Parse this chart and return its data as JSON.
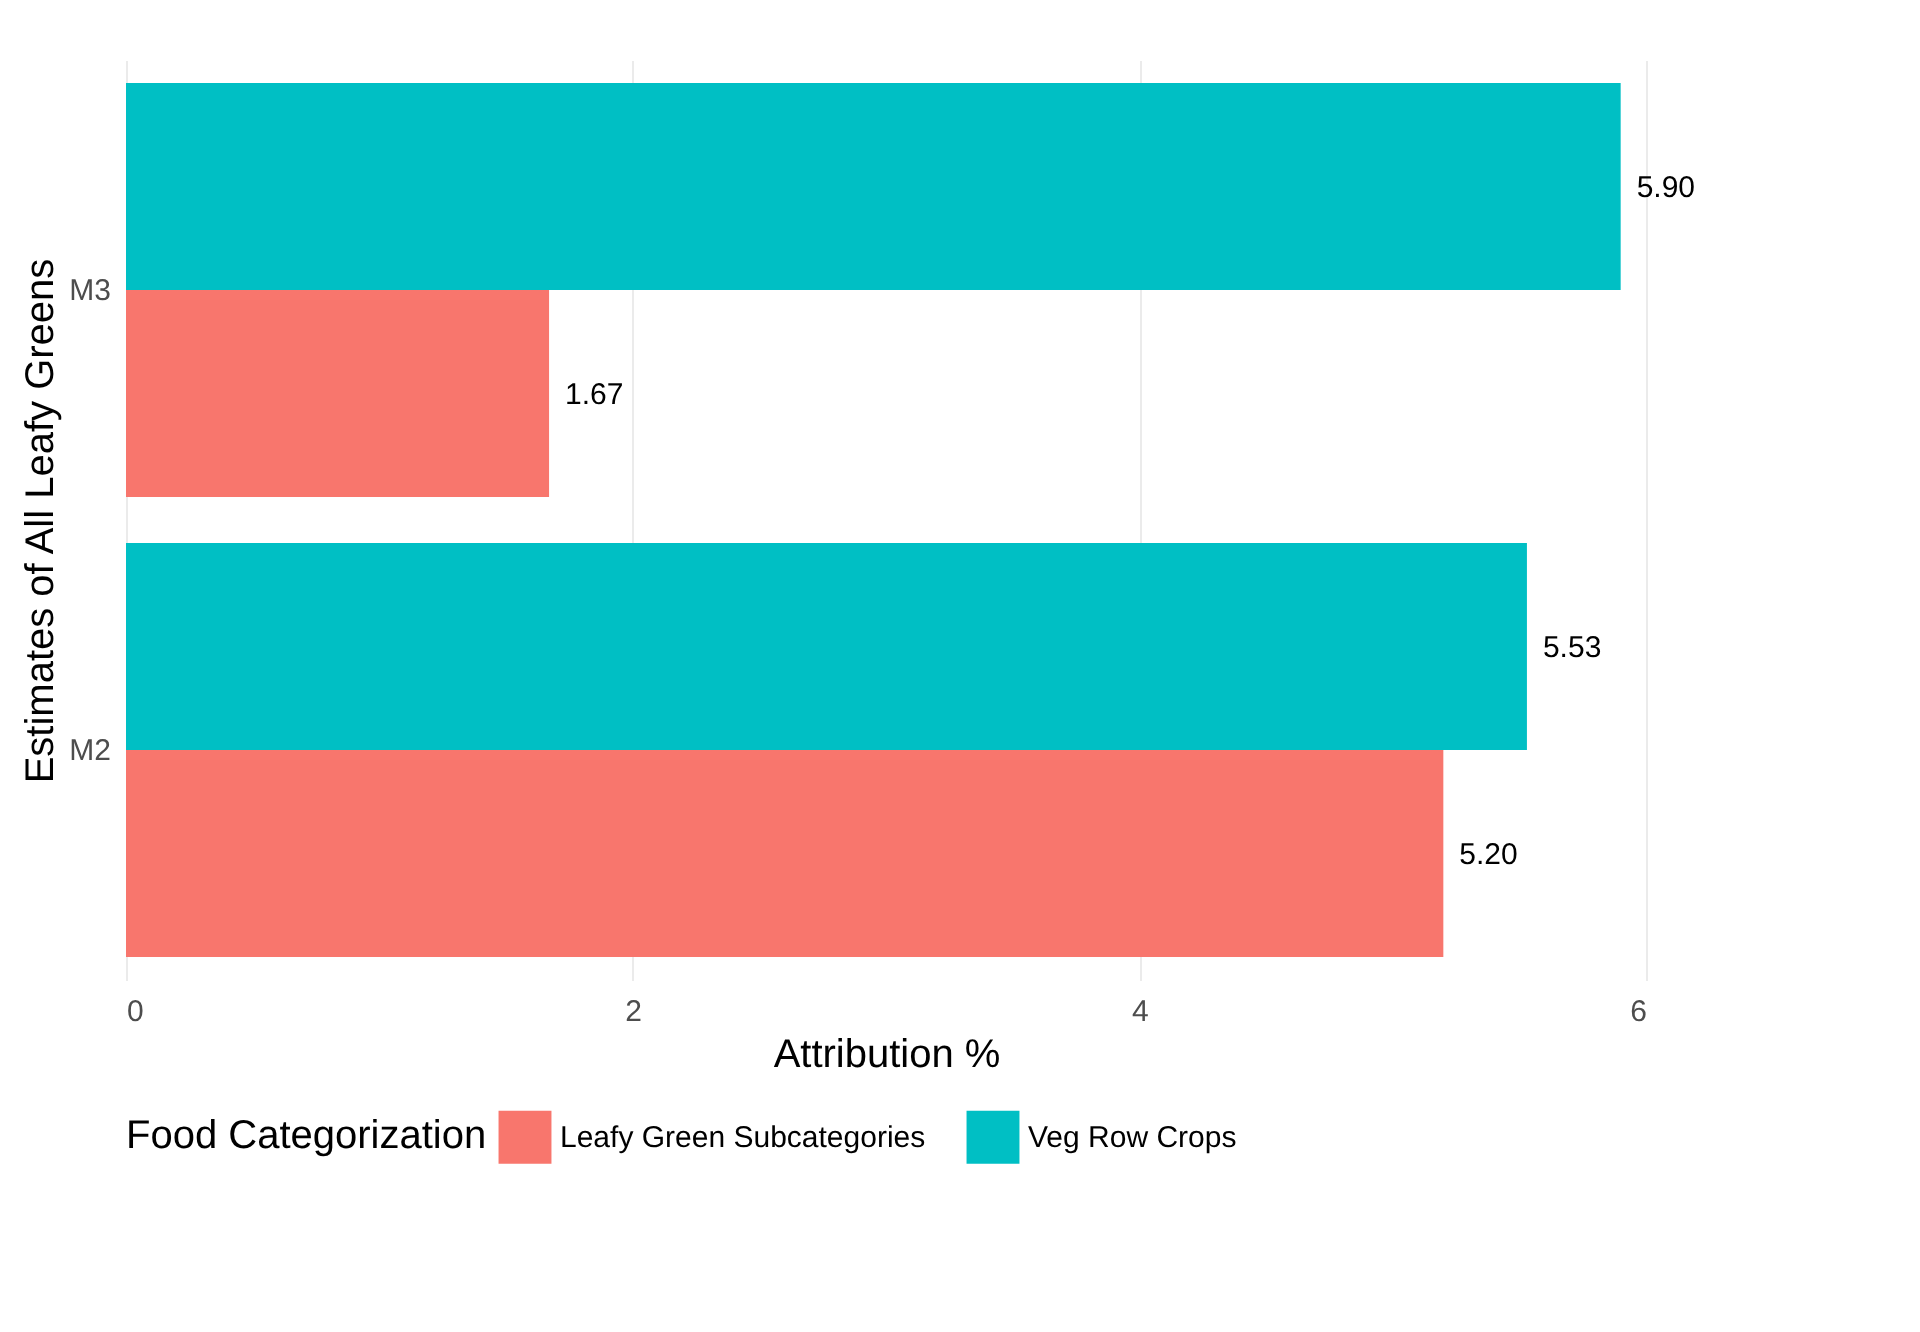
{
  "chart_data": {
    "type": "bar",
    "orientation": "horizontal",
    "xlabel": "Attribution %",
    "ylabel": "Estimates of All Leafy Greens",
    "legend_title": "Food Categorization",
    "categories": [
      "M3",
      "M2"
    ],
    "series": [
      {
        "name": "Leafy Green Subcategories",
        "color": "#f8766d",
        "values": [
          1.67,
          5.2
        ],
        "value_labels": [
          "1.67",
          "5.20"
        ]
      },
      {
        "name": "Veg Row Crops",
        "color": "#00bfc4",
        "values": [
          5.9,
          5.53
        ],
        "value_labels": [
          "5.90",
          "5.53"
        ]
      }
    ],
    "xlim": [
      0,
      6
    ],
    "xticks": [
      0,
      2,
      4,
      6
    ],
    "grid": "x",
    "legend": "bottom"
  }
}
